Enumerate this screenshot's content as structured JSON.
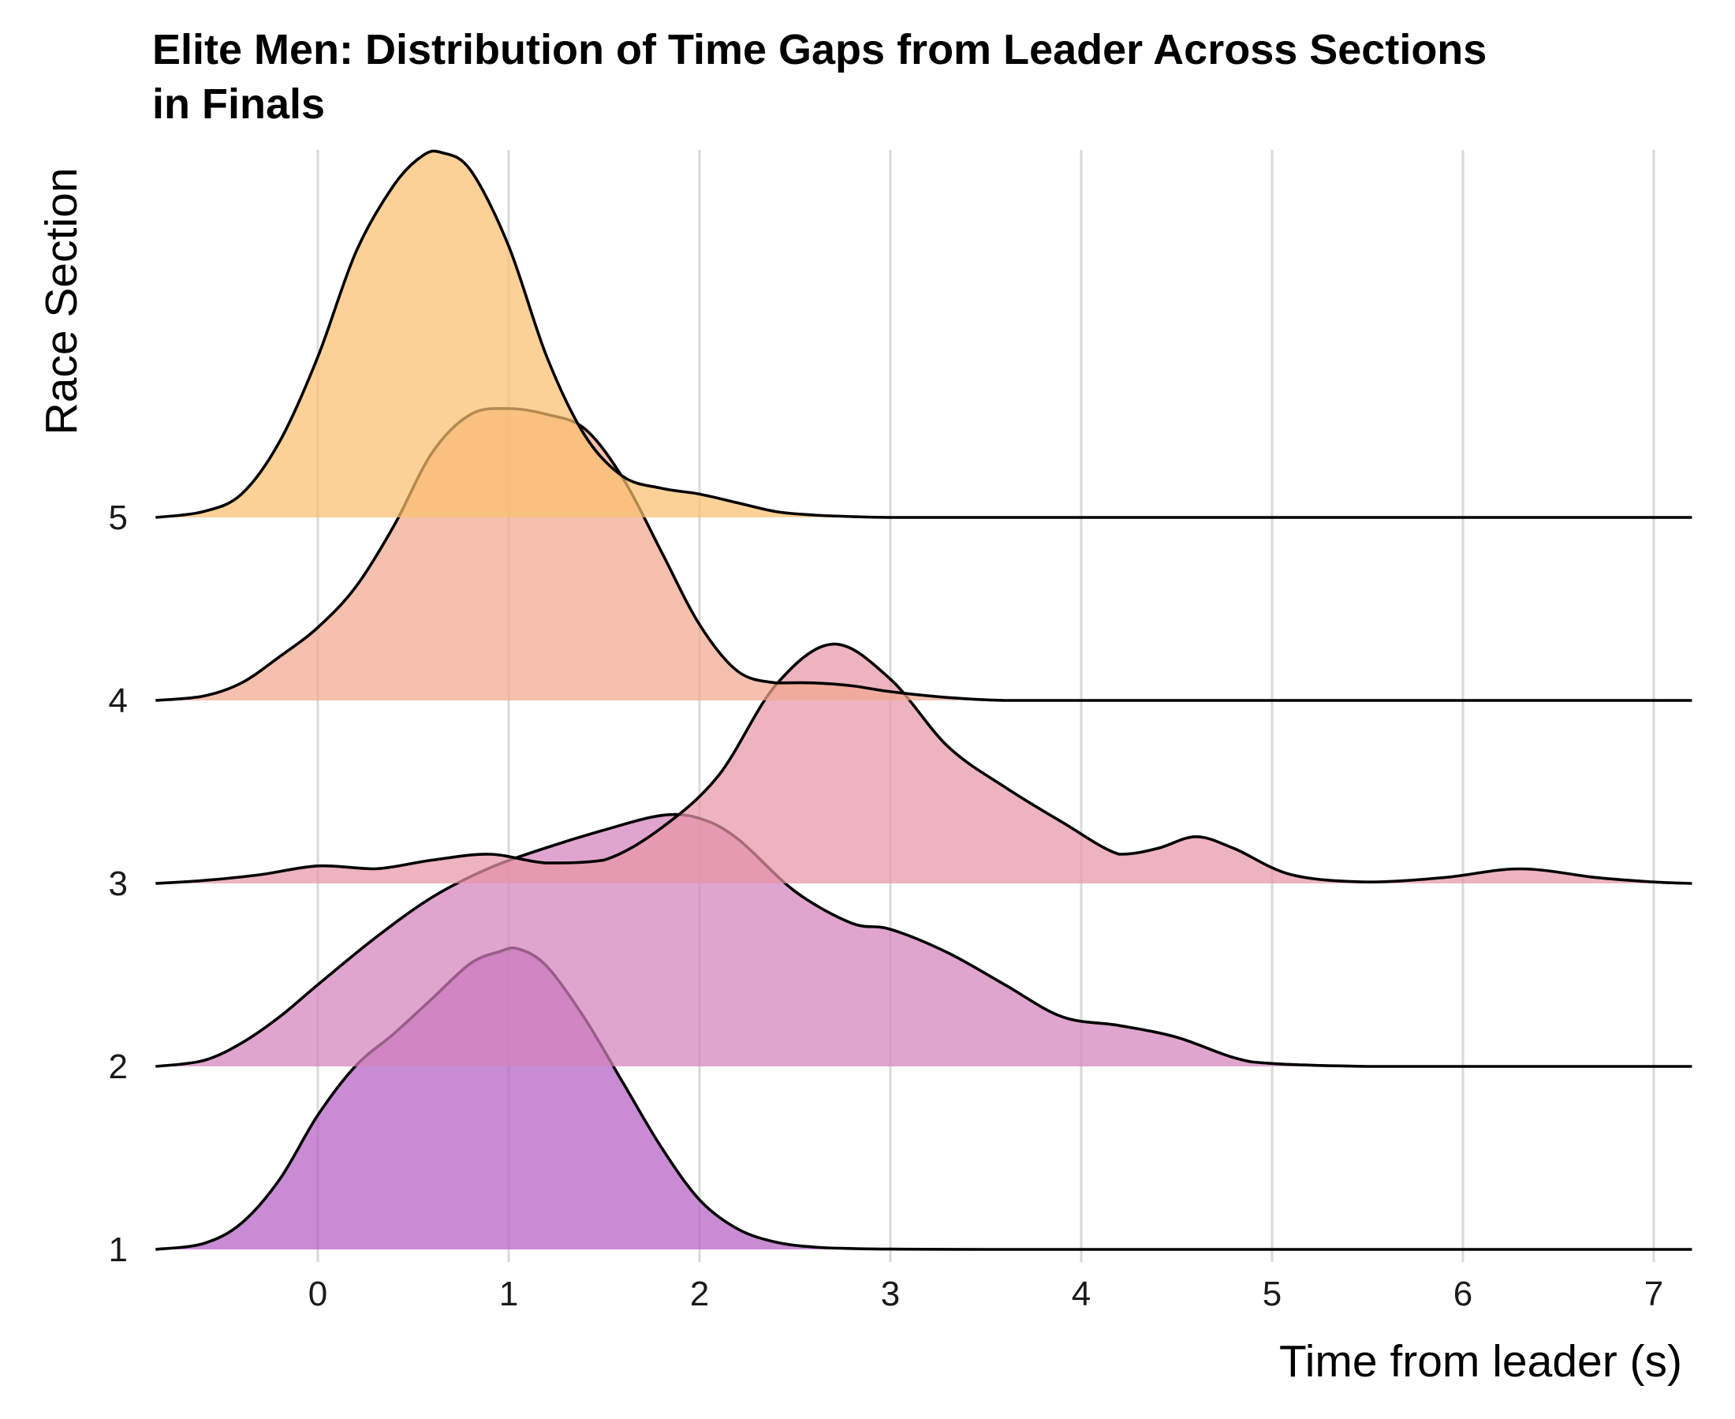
{
  "chart_data": {
    "type": "area",
    "subtype": "ridgeline",
    "title": "Elite Men: Distribution of Time Gaps from Leader Across Sections in Finals",
    "title_lines": [
      "Elite Men: Distribution of Time Gaps from Leader Across Sections",
      "in Finals"
    ],
    "xlabel": "Time from leader (s)",
    "ylabel": "Race Section",
    "xlim": [
      -0.85,
      7.2
    ],
    "xticks": [
      0,
      1,
      2,
      3,
      4,
      5,
      6,
      7
    ],
    "categories": [
      "1",
      "2",
      "3",
      "4",
      "5"
    ],
    "grid": "vertical",
    "legend": "none",
    "series": [
      {
        "section": "1",
        "color": "#b45ec4",
        "x": [
          -0.85,
          -0.6,
          -0.4,
          -0.2,
          0.0,
          0.2,
          0.4,
          0.6,
          0.8,
          0.95,
          1.05,
          1.2,
          1.4,
          1.6,
          1.8,
          2.0,
          2.2,
          2.4,
          2.6,
          2.8,
          3.0,
          3.5,
          4.0,
          5.0,
          6.0,
          7.2
        ],
        "y": [
          0.0,
          0.02,
          0.09,
          0.24,
          0.46,
          0.63,
          0.74,
          0.86,
          0.98,
          1.02,
          1.03,
          0.97,
          0.79,
          0.57,
          0.35,
          0.17,
          0.07,
          0.025,
          0.008,
          0.003,
          0.001,
          0.0,
          0.0,
          0.0,
          0.0,
          0.0
        ]
      },
      {
        "section": "2",
        "color": "#d482bc",
        "x": [
          -0.85,
          -0.6,
          -0.4,
          -0.2,
          0.0,
          0.3,
          0.6,
          0.9,
          1.2,
          1.5,
          1.8,
          2.0,
          2.2,
          2.5,
          2.8,
          3.0,
          3.3,
          3.6,
          3.9,
          4.2,
          4.5,
          4.8,
          5.0,
          5.5,
          6.0,
          7.2
        ],
        "y": [
          0.0,
          0.02,
          0.08,
          0.17,
          0.28,
          0.44,
          0.58,
          0.68,
          0.75,
          0.81,
          0.86,
          0.85,
          0.78,
          0.6,
          0.49,
          0.47,
          0.39,
          0.28,
          0.17,
          0.14,
          0.1,
          0.03,
          0.01,
          0.0,
          0.0,
          0.0
        ]
      },
      {
        "section": "3",
        "color": "#e695a6",
        "x": [
          -0.85,
          -0.6,
          -0.3,
          0.0,
          0.3,
          0.6,
          0.9,
          1.2,
          1.5,
          1.8,
          2.1,
          2.4,
          2.7,
          3.0,
          3.3,
          3.6,
          3.9,
          4.2,
          4.4,
          4.6,
          4.8,
          5.1,
          5.5,
          5.9,
          6.3,
          6.7,
          7.0,
          7.2
        ],
        "y": [
          0.0,
          0.01,
          0.03,
          0.06,
          0.05,
          0.08,
          0.1,
          0.07,
          0.08,
          0.19,
          0.37,
          0.68,
          0.82,
          0.7,
          0.47,
          0.33,
          0.21,
          0.1,
          0.12,
          0.16,
          0.12,
          0.03,
          0.005,
          0.02,
          0.05,
          0.02,
          0.005,
          0.0
        ]
      },
      {
        "section": "4",
        "color": "#f2a88f",
        "x": [
          -0.85,
          -0.6,
          -0.4,
          -0.2,
          0.0,
          0.2,
          0.4,
          0.6,
          0.8,
          1.0,
          1.2,
          1.4,
          1.6,
          1.8,
          2.0,
          2.2,
          2.4,
          2.6,
          2.8,
          3.0,
          3.3,
          3.6,
          4.0,
          5.0,
          6.0,
          7.2
        ],
        "y": [
          0.0,
          0.015,
          0.06,
          0.15,
          0.25,
          0.39,
          0.6,
          0.85,
          0.98,
          1.0,
          0.98,
          0.93,
          0.76,
          0.51,
          0.26,
          0.1,
          0.06,
          0.06,
          0.05,
          0.03,
          0.01,
          0.0,
          0.0,
          0.0,
          0.0,
          0.0
        ]
      },
      {
        "section": "5",
        "color": "#f9bf6f",
        "x": [
          -0.85,
          -0.6,
          -0.4,
          -0.2,
          0.0,
          0.2,
          0.4,
          0.55,
          0.65,
          0.8,
          1.0,
          1.2,
          1.4,
          1.6,
          1.8,
          2.0,
          2.2,
          2.4,
          2.6,
          2.8,
          3.0,
          3.5,
          4.0,
          5.0,
          6.0,
          7.2
        ],
        "y": [
          0.0,
          0.02,
          0.08,
          0.26,
          0.55,
          0.91,
          1.14,
          1.24,
          1.25,
          1.19,
          0.93,
          0.55,
          0.28,
          0.14,
          0.1,
          0.08,
          0.05,
          0.02,
          0.008,
          0.003,
          0.0,
          0.0,
          0.0,
          0.0,
          0.0,
          0.0
        ]
      }
    ]
  }
}
